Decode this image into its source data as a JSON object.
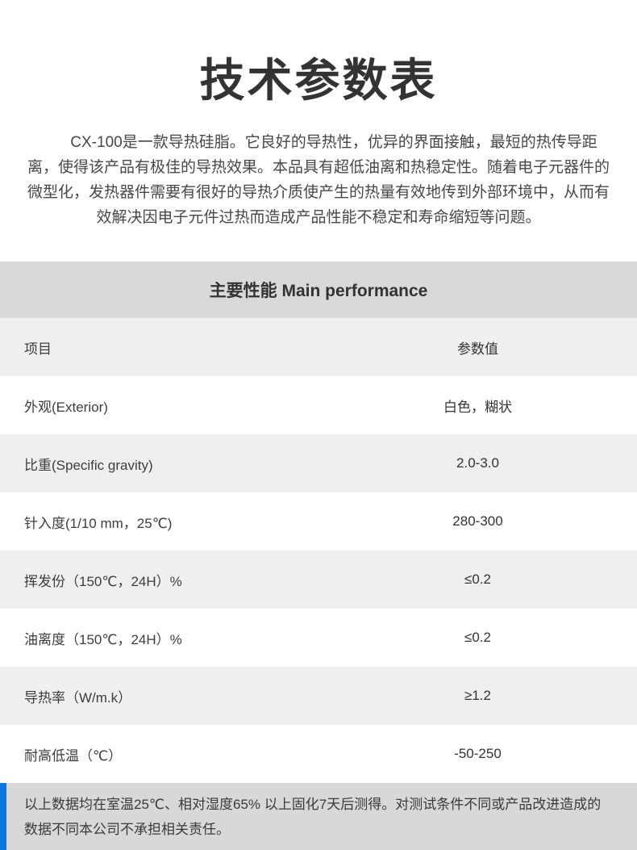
{
  "page": {
    "title": "技术参数表",
    "intro": "CX-100是一款导热硅脂。它良好的导热性，优异的界面接触，最短的热传导距离，使得该产品有极佳的导热效果。本品具有超低油离和热稳定性。随着电子元器件的微型化，发热器件需要有很好的导热介质使产生的热量有效地传到外部环境中，从而有效解决因电子元件过热而造成产品性能不稳定和寿命缩短等问题。"
  },
  "table": {
    "section_title": "主要性能 Main performance",
    "columns": {
      "item": "项目",
      "value": "参数值"
    },
    "rows": [
      {
        "label": "外观(Exterior)",
        "value": "白色，糊状"
      },
      {
        "label": "比重(Specific gravity)",
        "value": "2.0-3.0"
      },
      {
        "label": "针入度(1/10 mm，25℃)",
        "value": "280-300"
      },
      {
        "label": "挥发份（150℃，24H）%",
        "value": "≤0.2"
      },
      {
        "label": "油离度（150℃，24H）%",
        "value": "≤0.2"
      },
      {
        "label": "导热率（W/m.k）",
        "value": "≥1.2"
      },
      {
        "label": "耐高低温（℃）",
        "value": "-50-250"
      }
    ]
  },
  "footnote": {
    "text": "以上数据均在室温25℃、相对湿度65% 以上固化7天后测得。对测试条件不同或产品改进造成的数据不同本公司不承担相关责任。"
  },
  "colors": {
    "accent_blue": "#0e76e0",
    "section_header_gray": "#d9d9d9",
    "row_alt_gray": "#efefef",
    "footnote_gray": "#d8d8d8"
  }
}
